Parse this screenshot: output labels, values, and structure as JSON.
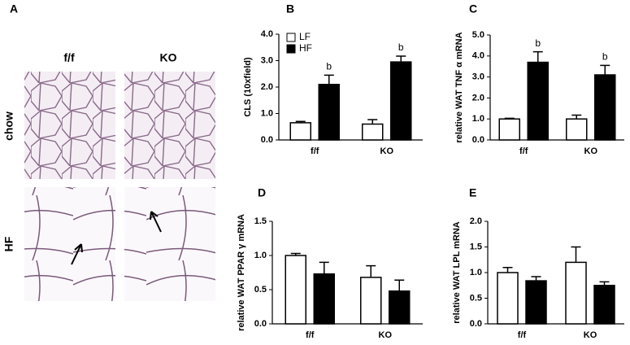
{
  "panel_a": {
    "label": "A",
    "columns": [
      "f/f",
      "KO"
    ],
    "rows": [
      "chow",
      "HF"
    ]
  },
  "chart_data": [
    {
      "type": "bar",
      "panel_label": "B",
      "y_label": "CLS (10xfield)",
      "categories": [
        "f/f",
        "KO"
      ],
      "legend": true,
      "series": [
        {
          "name": "LF",
          "color": "#ffffff",
          "values": [
            0.65,
            0.6
          ],
          "errors": [
            0.05,
            0.17
          ]
        },
        {
          "name": "HF",
          "color": "#000000",
          "values": [
            2.1,
            2.95
          ],
          "errors": [
            0.35,
            0.22
          ],
          "annotations": [
            "b",
            "b"
          ]
        }
      ],
      "ylim": [
        0,
        4
      ],
      "yticks": [
        {
          "value": 0,
          "label": "0.0"
        },
        {
          "value": 1,
          "label": "1.0"
        },
        {
          "value": 2,
          "label": "2.0"
        },
        {
          "value": 3,
          "label": "3.0"
        },
        {
          "value": 4,
          "label": "4.0"
        }
      ]
    },
    {
      "type": "bar",
      "panel_label": "C",
      "y_label": "relative WAT TNF α mRNA",
      "categories": [
        "f/f",
        "KO"
      ],
      "legend": false,
      "series": [
        {
          "name": "LF",
          "color": "#ffffff",
          "values": [
            1.0,
            1.0
          ],
          "errors": [
            0.03,
            0.18
          ]
        },
        {
          "name": "HF",
          "color": "#000000",
          "values": [
            3.7,
            3.1
          ],
          "errors": [
            0.5,
            0.45
          ],
          "annotations": [
            "b",
            "b"
          ]
        }
      ],
      "ylim": [
        0,
        5
      ],
      "yticks": [
        {
          "value": 0,
          "label": "0.0"
        },
        {
          "value": 1,
          "label": "1.0"
        },
        {
          "value": 2,
          "label": "2.0"
        },
        {
          "value": 3,
          "label": "3.0"
        },
        {
          "value": 4,
          "label": "4.0"
        },
        {
          "value": 5,
          "label": "5.0"
        }
      ]
    },
    {
      "type": "bar",
      "panel_label": "D",
      "y_label": "relative WAT PPAR γ mRNA",
      "categories": [
        "f/f",
        "KO"
      ],
      "legend": false,
      "series": [
        {
          "name": "LF",
          "color": "#ffffff",
          "values": [
            1.0,
            0.68
          ],
          "errors": [
            0.03,
            0.17
          ]
        },
        {
          "name": "HF",
          "color": "#000000",
          "values": [
            0.73,
            0.48
          ],
          "errors": [
            0.17,
            0.16
          ]
        }
      ],
      "ylim": [
        0,
        1.5
      ],
      "yticks": [
        {
          "value": 0,
          "label": "0.0"
        },
        {
          "value": 0.5,
          "label": "0.5"
        },
        {
          "value": 1,
          "label": "1.0"
        },
        {
          "value": 1.5,
          "label": "1.5"
        }
      ]
    },
    {
      "type": "bar",
      "panel_label": "E",
      "y_label": "relative WAT LPL mRNA",
      "categories": [
        "f/f",
        "KO"
      ],
      "legend": false,
      "series": [
        {
          "name": "LF",
          "color": "#ffffff",
          "values": [
            1.0,
            1.2
          ],
          "errors": [
            0.1,
            0.3
          ]
        },
        {
          "name": "HF",
          "color": "#000000",
          "values": [
            0.84,
            0.75
          ],
          "errors": [
            0.08,
            0.07
          ]
        }
      ],
      "ylim": [
        0,
        2
      ],
      "yticks": [
        {
          "value": 0,
          "label": "0.0"
        },
        {
          "value": 0.5,
          "label": "0.5"
        },
        {
          "value": 1,
          "label": "1.0"
        },
        {
          "value": 1.5,
          "label": "1.5"
        },
        {
          "value": 2,
          "label": "2.0"
        }
      ]
    }
  ]
}
